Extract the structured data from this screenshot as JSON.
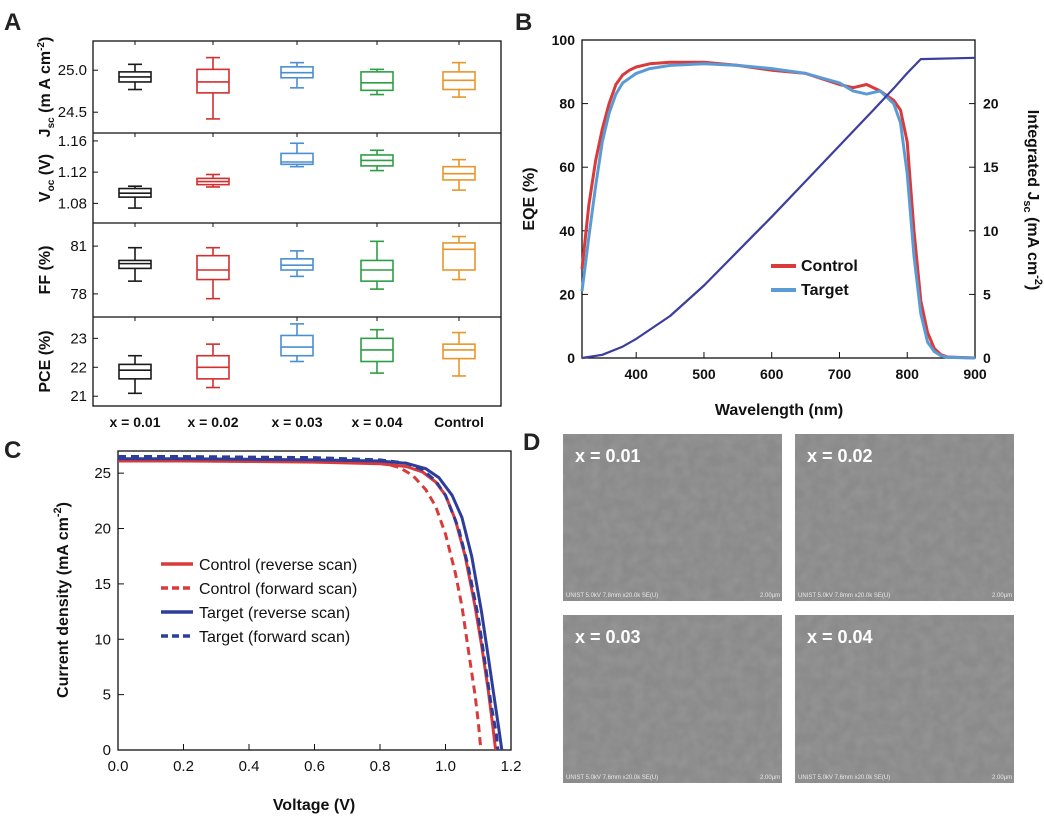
{
  "panel_labels": [
    "A",
    "B",
    "C",
    "D"
  ],
  "colors": {
    "x001": "#1a1a1a",
    "x002": "#d32f2f",
    "x003": "#4a8fd0",
    "x004": "#2e9e44",
    "control_box": "#e8962a",
    "control_line": "#d93a3a",
    "target_line": "#5b9bd5",
    "target_jv": "#2e3d99",
    "integrated": "#3d3d9e"
  },
  "chart_data": [
    {
      "type": "box",
      "panel": "A",
      "categories": [
        "x = 0.01",
        "x = 0.02",
        "x = 0.03",
        "x = 0.04",
        "Control"
      ],
      "subplots": [
        {
          "ylabel_main": "J",
          "ylabel_sub": "sc",
          "ylabel_rest": " (m A cm",
          "ylabel_sup": "-2",
          "ylabel_close": ")",
          "ylim": [
            24.3,
            25.3
          ],
          "ticks": [
            {
              "v": 24.5,
              "label": "24.5"
            },
            {
              "v": 25.0,
              "label": "25.0"
            }
          ],
          "boxes": [
            {
              "min": 24.77,
              "q1": 24.86,
              "median": 24.92,
              "q3": 24.98,
              "max": 25.07
            },
            {
              "min": 24.42,
              "q1": 24.73,
              "median": 24.86,
              "q3": 25.01,
              "max": 25.15
            },
            {
              "min": 24.79,
              "q1": 24.91,
              "median": 24.97,
              "q3": 25.04,
              "max": 25.09
            },
            {
              "min": 24.71,
              "q1": 24.76,
              "median": 24.85,
              "q3": 24.98,
              "max": 25.01
            },
            {
              "min": 24.68,
              "q1": 24.77,
              "median": 24.88,
              "q3": 24.98,
              "max": 25.09
            }
          ]
        },
        {
          "ylabel_main": "V",
          "ylabel_sub": "oc",
          "ylabel_rest": " (V)",
          "ylabel_sup": "",
          "ylabel_close": "",
          "ylim": [
            1.06,
            1.165
          ],
          "ticks": [
            {
              "v": 1.08,
              "label": "1.08"
            },
            {
              "v": 1.12,
              "label": "1.12"
            },
            {
              "v": 1.16,
              "label": "1.16"
            }
          ],
          "boxes": [
            {
              "min": 1.074,
              "q1": 1.088,
              "median": 1.093,
              "q3": 1.099,
              "max": 1.102
            },
            {
              "min": 1.101,
              "q1": 1.104,
              "median": 1.108,
              "q3": 1.112,
              "max": 1.117
            },
            {
              "min": 1.127,
              "q1": 1.13,
              "median": 1.133,
              "q3": 1.144,
              "max": 1.157
            },
            {
              "min": 1.122,
              "q1": 1.128,
              "median": 1.135,
              "q3": 1.142,
              "max": 1.148
            },
            {
              "min": 1.097,
              "q1": 1.11,
              "median": 1.118,
              "q3": 1.127,
              "max": 1.136
            }
          ]
        },
        {
          "ylabel_main": "FF (%)",
          "ylabel_sub": "",
          "ylabel_rest": "",
          "ylabel_sup": "",
          "ylabel_close": "",
          "ylim": [
            76.8,
            82.2
          ],
          "ticks": [
            {
              "v": 78,
              "label": "78"
            },
            {
              "v": 81,
              "label": "81"
            }
          ],
          "boxes": [
            {
              "min": 78.8,
              "q1": 79.6,
              "median": 79.9,
              "q3": 80.1,
              "max": 80.9
            },
            {
              "min": 77.7,
              "q1": 78.9,
              "median": 79.5,
              "q3": 80.4,
              "max": 80.9
            },
            {
              "min": 79.1,
              "q1": 79.5,
              "median": 79.8,
              "q3": 80.2,
              "max": 80.7
            },
            {
              "min": 78.3,
              "q1": 78.8,
              "median": 79.5,
              "q3": 80.1,
              "max": 81.3
            },
            {
              "min": 78.9,
              "q1": 79.5,
              "median": 80.8,
              "q3": 81.2,
              "max": 81.6
            }
          ]
        },
        {
          "ylabel_main": "PCE (%)",
          "ylabel_sub": "",
          "ylabel_rest": "",
          "ylabel_sup": "",
          "ylabel_close": "",
          "ylim": [
            20.8,
            23.6
          ],
          "ticks": [
            {
              "v": 21,
              "label": "21"
            },
            {
              "v": 22,
              "label": "22"
            },
            {
              "v": 23,
              "label": "23"
            }
          ],
          "boxes": [
            {
              "min": 21.1,
              "q1": 21.6,
              "median": 21.9,
              "q3": 22.1,
              "max": 22.4
            },
            {
              "min": 21.3,
              "q1": 21.6,
              "median": 22.0,
              "q3": 22.4,
              "max": 22.8
            },
            {
              "min": 22.2,
              "q1": 22.4,
              "median": 22.7,
              "q3": 23.1,
              "max": 23.5
            },
            {
              "min": 21.8,
              "q1": 22.2,
              "median": 22.6,
              "q3": 23.0,
              "max": 23.3
            },
            {
              "min": 21.7,
              "q1": 22.3,
              "median": 22.6,
              "q3": 22.8,
              "max": 23.2
            }
          ]
        }
      ]
    },
    {
      "type": "line",
      "panel": "B",
      "xlabel": "Wavelength (nm)",
      "ylabel": "EQE (%)",
      "y2label_main": "Integrated J",
      "y2label_sub": "sc",
      "y2label_rest": " (mA cm",
      "y2label_sup": "-2",
      "y2label_close": ")",
      "xlim": [
        320,
        900
      ],
      "ylim": [
        0,
        100
      ],
      "y2lim": [
        0,
        25
      ],
      "xticks": [
        400,
        500,
        600,
        700,
        800,
        900
      ],
      "yticks": [
        0,
        20,
        40,
        60,
        80,
        100
      ],
      "y2ticks": [
        0,
        5,
        10,
        15,
        20
      ],
      "legend": [
        "Control",
        "Target"
      ],
      "series": [
        {
          "name": "Control",
          "axis": "left",
          "x": [
            320,
            330,
            340,
            350,
            360,
            370,
            380,
            390,
            400,
            420,
            450,
            500,
            550,
            600,
            650,
            700,
            720,
            740,
            760,
            780,
            790,
            800,
            810,
            820,
            830,
            840,
            850,
            860,
            900
          ],
          "y": [
            28,
            48,
            62,
            72,
            80,
            86,
            89,
            90.5,
            91.5,
            92.5,
            93,
            93,
            92,
            90.5,
            89.5,
            86,
            85,
            86,
            84,
            81,
            78,
            68,
            40,
            18,
            8,
            3,
            1,
            0.3,
            0
          ]
        },
        {
          "name": "Target",
          "axis": "left",
          "x": [
            320,
            330,
            340,
            350,
            360,
            370,
            380,
            390,
            400,
            420,
            450,
            500,
            550,
            600,
            650,
            700,
            720,
            740,
            760,
            780,
            790,
            800,
            810,
            820,
            830,
            840,
            850,
            860,
            900
          ],
          "y": [
            21,
            38,
            54,
            68,
            77,
            83,
            86.5,
            88,
            89.5,
            91,
            92,
            92.5,
            92,
            91,
            89.5,
            86.5,
            84,
            83,
            84,
            80,
            74,
            58,
            32,
            14,
            5,
            2,
            0.7,
            0.2,
            0
          ]
        },
        {
          "name": "Integrated Jsc",
          "axis": "right",
          "x": [
            320,
            350,
            380,
            400,
            450,
            500,
            550,
            600,
            650,
            700,
            750,
            780,
            800,
            820,
            900
          ],
          "y": [
            0,
            0.25,
            0.9,
            1.5,
            3.3,
            5.7,
            8.4,
            11.1,
            13.9,
            16.7,
            19.5,
            21.2,
            22.4,
            23.5,
            23.6
          ]
        }
      ]
    },
    {
      "type": "line",
      "panel": "C",
      "xlabel": "Voltage (V)",
      "ylabel_main": "Current density (mA cm",
      "ylabel_sup": "-2",
      "ylabel_close": ")",
      "xlim": [
        0,
        1.2
      ],
      "ylim": [
        0,
        27
      ],
      "xticks": [
        {
          "v": 0,
          "label": "0.0"
        },
        {
          "v": 0.2,
          "label": "0.2"
        },
        {
          "v": 0.4,
          "label": "0.4"
        },
        {
          "v": 0.6,
          "label": "0.6"
        },
        {
          "v": 0.8,
          "label": "0.8"
        },
        {
          "v": 1.0,
          "label": "1.0"
        },
        {
          "v": 1.2,
          "label": "1.2"
        }
      ],
      "yticks": [
        0,
        5,
        10,
        15,
        20,
        25
      ],
      "legend": [
        "Control (reverse scan)",
        "Control (forward scan)",
        "Target (reverse scan)",
        "Target (forward scan)"
      ],
      "series": [
        {
          "name": "Control (reverse scan)",
          "style": "solid",
          "x": [
            0,
            0.2,
            0.4,
            0.6,
            0.8,
            0.88,
            0.93,
            0.97,
            1.0,
            1.03,
            1.06,
            1.09,
            1.11,
            1.13,
            1.145,
            1.153
          ],
          "y": [
            26.1,
            26.1,
            26.05,
            26.0,
            25.85,
            25.6,
            25.1,
            24.2,
            23.0,
            20.8,
            17.5,
            13.0,
            9.5,
            5.5,
            2.0,
            0
          ]
        },
        {
          "name": "Control (forward scan)",
          "style": "dashed",
          "x": [
            0,
            0.2,
            0.4,
            0.6,
            0.8,
            0.86,
            0.9,
            0.94,
            0.97,
            1.0,
            1.03,
            1.05,
            1.07,
            1.09,
            1.1,
            1.108
          ],
          "y": [
            26.3,
            26.3,
            26.25,
            26.2,
            26.0,
            25.5,
            24.8,
            23.5,
            22.0,
            19.5,
            16.0,
            13.0,
            9.0,
            5.0,
            2.5,
            0
          ]
        },
        {
          "name": "Target (reverse scan)",
          "style": "solid",
          "x": [
            0,
            0.2,
            0.4,
            0.6,
            0.8,
            0.88,
            0.94,
            0.98,
            1.02,
            1.05,
            1.08,
            1.11,
            1.13,
            1.15,
            1.165,
            1.172
          ],
          "y": [
            26.3,
            26.3,
            26.25,
            26.2,
            26.1,
            25.9,
            25.4,
            24.6,
            23.0,
            21.0,
            17.5,
            12.5,
            8.5,
            4.5,
            1.5,
            0
          ]
        },
        {
          "name": "Target (forward scan)",
          "style": "dashed",
          "x": [
            0,
            0.2,
            0.4,
            0.6,
            0.8,
            0.88,
            0.93,
            0.97,
            1.0,
            1.04,
            1.07,
            1.1,
            1.12,
            1.14,
            1.155,
            1.16
          ],
          "y": [
            26.5,
            26.5,
            26.45,
            26.4,
            26.2,
            25.9,
            25.3,
            24.3,
            23.0,
            20.0,
            16.5,
            12.0,
            8.0,
            4.0,
            1.5,
            0
          ]
        }
      ]
    }
  ],
  "sem_images": [
    {
      "label": "x = 0.01",
      "footer": "UNIST 5.0kV 7.8mm x20.0k SE(U)",
      "scale": "2.00µm"
    },
    {
      "label": "x = 0.02",
      "footer": "UNIST 5.0kV 7.8mm x20.0k SE(U)",
      "scale": "2.00µm"
    },
    {
      "label": "x = 0.03",
      "footer": "UNIST 5.0kV 7.6mm x20.0k SE(U)",
      "scale": "2.00µm"
    },
    {
      "label": "x = 0.04",
      "footer": "UNIST 5.0kV 7.6mm x20.0k SE(U)",
      "scale": "2.00µm"
    }
  ]
}
